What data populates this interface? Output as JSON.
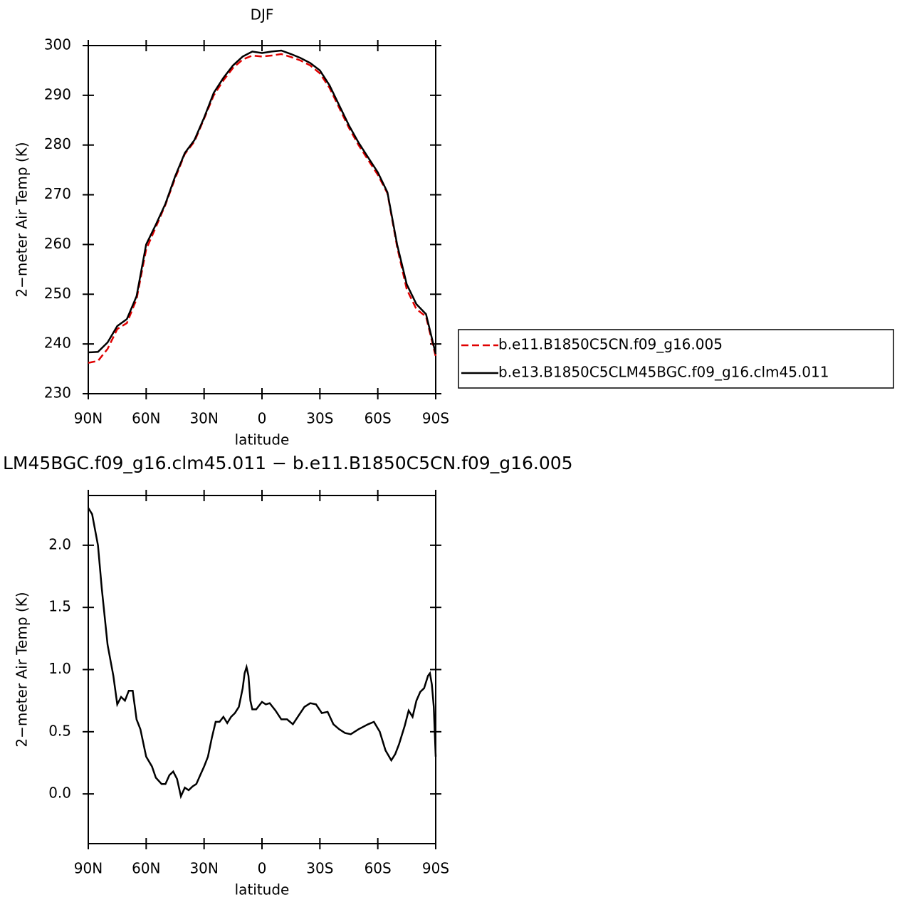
{
  "chart_data": [
    {
      "type": "line",
      "title": "DJF",
      "xlabel": "latitude",
      "ylabel": "2−meter Air Temp (K)",
      "x": [
        90,
        85,
        80,
        75,
        70,
        65,
        60,
        55,
        50,
        45,
        40,
        35,
        30,
        25,
        20,
        15,
        10,
        5,
        0,
        -5,
        -10,
        -15,
        -20,
        -25,
        -30,
        -35,
        -40,
        -45,
        -50,
        -55,
        -60,
        -65,
        -70,
        -75,
        -80,
        -85,
        -90
      ],
      "series": [
        {
          "name": "b.e11.B1850C5CN.f09_g16.005",
          "color": "#e00000",
          "dashed": true,
          "values": [
            236.2,
            236.6,
            239,
            243,
            244.2,
            249,
            259,
            263.5,
            268,
            273.3,
            278.2,
            280.7,
            285.3,
            290,
            293,
            295.5,
            297.2,
            298,
            297.8,
            298,
            298.3,
            297.7,
            297,
            296,
            294.4,
            291.5,
            287.5,
            283.5,
            280,
            277,
            274,
            270.3,
            259.5,
            251,
            247,
            245.5,
            237.5
          ]
        },
        {
          "name": "b.e13.B1850C5CLM45BGC.f09_g16.clm45.011",
          "color": "#000000",
          "dashed": false,
          "values": [
            238.3,
            238.4,
            240.3,
            243.6,
            245,
            249.6,
            260,
            264,
            268.2,
            273.7,
            278.4,
            281,
            285.5,
            290.5,
            293.5,
            296,
            297.8,
            298.8,
            298.5,
            298.8,
            299,
            298.3,
            297.5,
            296.5,
            295,
            292,
            288,
            284,
            280.5,
            277.5,
            274.5,
            270.5,
            260,
            252,
            248,
            246,
            238
          ]
        }
      ],
      "xlim": [
        90,
        -90
      ],
      "xticks": [
        {
          "value": 90,
          "label": "90N"
        },
        {
          "value": 60,
          "label": "60N"
        },
        {
          "value": 30,
          "label": "30N"
        },
        0,
        {
          "value": -30,
          "label": "30S"
        },
        {
          "value": -60,
          "label": "60S"
        },
        {
          "value": -90,
          "label": "90S"
        }
      ],
      "ylim": [
        230,
        300
      ],
      "yticks": [
        230,
        240,
        250,
        260,
        270,
        280,
        290,
        300
      ],
      "legend": "right"
    },
    {
      "type": "line",
      "title": "LM45BGC.f09_g16.clm45.011 − b.e11.B1850C5CN.f09_g16.005",
      "xlabel": "latitude",
      "ylabel": "2−meter Air Temp (K)",
      "x": [
        90,
        88,
        85,
        83,
        80,
        77,
        75,
        73,
        71,
        69,
        67,
        65,
        63,
        60,
        57,
        55,
        52,
        50,
        48,
        46,
        44,
        42,
        40,
        38,
        36,
        34,
        32,
        30,
        28,
        26,
        24,
        22,
        20,
        18,
        16,
        14,
        12,
        10,
        9,
        8,
        7,
        6,
        5,
        3,
        1,
        0,
        -2,
        -4,
        -7,
        -10,
        -13,
        -16,
        -19,
        -22,
        -25,
        -28,
        -31,
        -34,
        -37,
        -40,
        -43,
        -46,
        -50,
        -55,
        -58,
        -61,
        -64,
        -67,
        -69,
        -71,
        -74,
        -76,
        -78,
        -80,
        -82,
        -84,
        -86,
        -87,
        -88,
        -89,
        -90
      ],
      "series": [
        {
          "color": "#000000",
          "dashed": false,
          "values": [
            2.3,
            2.25,
            2.0,
            1.65,
            1.2,
            0.95,
            0.72,
            0.78,
            0.75,
            0.83,
            0.83,
            0.6,
            0.52,
            0.3,
            0.22,
            0.13,
            0.08,
            0.08,
            0.15,
            0.18,
            0.12,
            -0.02,
            0.05,
            0.03,
            0.06,
            0.08,
            0.15,
            0.22,
            0.3,
            0.45,
            0.58,
            0.58,
            0.62,
            0.57,
            0.62,
            0.65,
            0.7,
            0.85,
            0.97,
            1.02,
            0.95,
            0.75,
            0.68,
            0.68,
            0.72,
            0.74,
            0.72,
            0.73,
            0.67,
            0.6,
            0.6,
            0.56,
            0.63,
            0.7,
            0.73,
            0.72,
            0.65,
            0.66,
            0.56,
            0.52,
            0.49,
            0.48,
            0.52,
            0.56,
            0.58,
            0.5,
            0.35,
            0.27,
            0.32,
            0.4,
            0.55,
            0.67,
            0.62,
            0.75,
            0.82,
            0.85,
            0.95,
            0.97,
            0.88,
            0.7,
            0.3
          ]
        }
      ],
      "xlim": [
        90,
        -90
      ],
      "xticks": [
        {
          "value": 90,
          "label": "90N"
        },
        {
          "value": 60,
          "label": "60N"
        },
        {
          "value": 30,
          "label": "30N"
        },
        0,
        {
          "value": -30,
          "label": "30S"
        },
        {
          "value": -60,
          "label": "60S"
        },
        {
          "value": -90,
          "label": "90S"
        }
      ],
      "ylim": [
        -0.4,
        2.4
      ],
      "yticks": [
        {
          "value": 0,
          "label": "0.0"
        },
        0.5,
        {
          "value": 1,
          "label": "1.0"
        },
        1.5,
        {
          "value": 2,
          "label": "2.0"
        }
      ]
    }
  ]
}
